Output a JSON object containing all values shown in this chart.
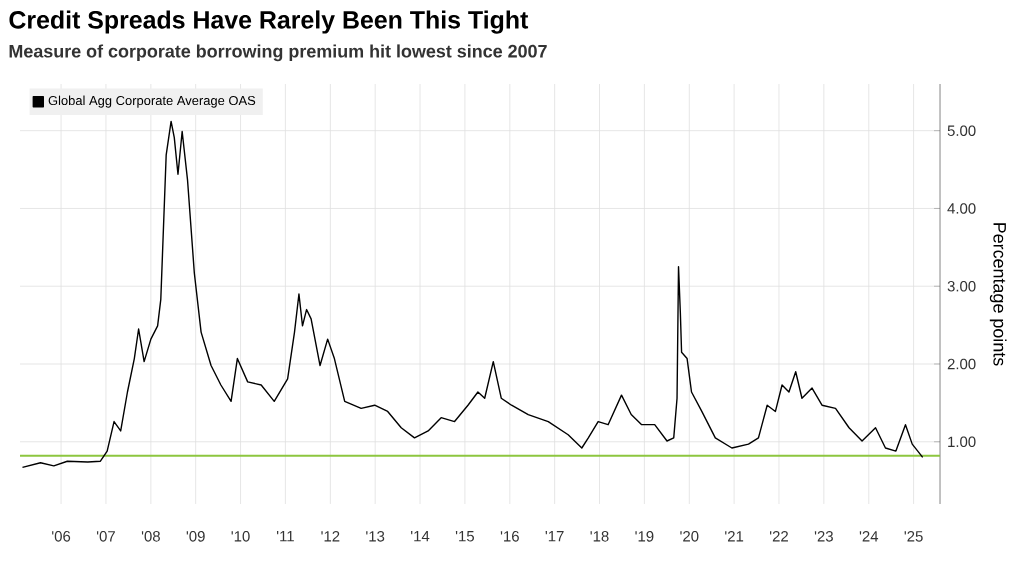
{
  "chart_data": {
    "type": "line",
    "title": "Credit Spreads Have Rarely Been This Tight",
    "subtitle": "Measure of corporate borrowing premium hit lowest since 2007",
    "ylabel": "Percentage points",
    "xlim": [
      "2005-08-01",
      "2026-02-01"
    ],
    "ylim": [
      0.2,
      5.6
    ],
    "xticks": [
      {
        "value": "2006-07-01",
        "label": "'06"
      },
      {
        "value": "2007-07-01",
        "label": "'07"
      },
      {
        "value": "2008-07-01",
        "label": "'08"
      },
      {
        "value": "2009-07-01",
        "label": "'09"
      },
      {
        "value": "2010-07-01",
        "label": "'10"
      },
      {
        "value": "2011-07-01",
        "label": "'11"
      },
      {
        "value": "2012-07-01",
        "label": "'12"
      },
      {
        "value": "2013-07-01",
        "label": "'13"
      },
      {
        "value": "2014-07-01",
        "label": "'14"
      },
      {
        "value": "2015-07-01",
        "label": "'15"
      },
      {
        "value": "2016-07-01",
        "label": "'16"
      },
      {
        "value": "2017-07-01",
        "label": "'17"
      },
      {
        "value": "2018-07-01",
        "label": "'18"
      },
      {
        "value": "2019-07-01",
        "label": "'19"
      },
      {
        "value": "2020-07-01",
        "label": "'20"
      },
      {
        "value": "2021-07-01",
        "label": "'21"
      },
      {
        "value": "2022-07-01",
        "label": "'22"
      },
      {
        "value": "2023-07-01",
        "label": "'23"
      },
      {
        "value": "2024-07-01",
        "label": "'24"
      },
      {
        "value": "2025-07-01",
        "label": "'25"
      }
    ],
    "yticks": [
      {
        "value": 1,
        "label": "1.00"
      },
      {
        "value": 2,
        "label": "2.00"
      },
      {
        "value": 3,
        "label": "3.00"
      },
      {
        "value": 4,
        "label": "4.00"
      },
      {
        "value": 5,
        "label": "5.00"
      }
    ],
    "grid": true,
    "legend": "top left",
    "marker": "none",
    "line_style": "solid",
    "ref_lines": [
      {
        "axis": "y",
        "value": 0.82,
        "color": "#8dc63f"
      }
    ],
    "series": [
      {
        "name": "Global Agg Corporate Average OAS",
        "color": "#000000",
        "x": [
          "2005-08-21",
          "2006-01-15",
          "2006-05-03",
          "2006-08-21",
          "2007-02-03",
          "2007-05-17",
          "2007-07-11",
          "2007-09-05",
          "2007-10-29",
          "2007-12-23",
          "2008-02-17",
          "2008-03-23",
          "2008-05-07",
          "2008-07-01",
          "2008-08-25",
          "2008-09-20",
          "2008-11-03",
          "2008-12-13",
          "2009-01-08",
          "2009-02-07",
          "2009-03-13",
          "2009-04-26",
          "2009-06-20",
          "2009-08-14",
          "2009-11-03",
          "2010-01-22",
          "2010-04-15",
          "2010-06-05",
          "2010-08-28",
          "2010-12-16",
          "2011-04-01",
          "2011-07-19",
          "2011-09-13",
          "2011-10-19",
          "2011-11-17",
          "2011-12-20",
          "2012-01-26",
          "2012-04-08",
          "2012-06-09",
          "2012-08-03",
          "2012-10-26",
          "2013-03-09",
          "2013-06-27",
          "2013-10-11",
          "2014-01-29",
          "2014-05-17",
          "2014-09-05",
          "2014-12-20",
          "2015-04-08",
          "2015-07-26",
          "2015-10-15",
          "2015-12-09",
          "2016-02-17",
          "2016-04-22",
          "2016-07-15",
          "2016-11-28",
          "2017-05-10",
          "2017-10-19",
          "2018-02-07",
          "2018-04-01",
          "2018-06-20",
          "2018-09-09",
          "2018-12-27",
          "2019-03-16",
          "2019-06-09",
          "2019-09-23",
          "2020-01-01",
          "2020-02-25",
          "2020-03-23",
          "2020-04-04",
          "2020-04-19",
          "2020-04-29",
          "2020-06-13",
          "2020-07-19",
          "2020-10-11",
          "2021-01-29",
          "2021-06-13",
          "2021-10-26",
          "2022-01-15",
          "2022-03-27",
          "2022-06-02",
          "2022-07-26",
          "2022-09-20",
          "2022-11-14",
          "2023-01-04",
          "2023-03-27",
          "2023-06-16",
          "2023-10-04",
          "2024-01-22",
          "2024-05-07",
          "2024-08-25",
          "2024-11-14",
          "2025-02-07",
          "2025-04-26",
          "2025-06-20",
          "2025-09-13"
        ],
        "values": [
          0.67,
          0.73,
          0.69,
          0.75,
          0.74,
          0.75,
          0.88,
          1.26,
          1.14,
          1.64,
          2.07,
          2.45,
          2.03,
          2.32,
          2.49,
          2.83,
          4.69,
          5.12,
          4.91,
          4.44,
          4.99,
          4.36,
          3.17,
          2.41,
          1.98,
          1.73,
          1.52,
          2.07,
          1.77,
          1.73,
          1.52,
          1.81,
          2.41,
          2.9,
          2.49,
          2.7,
          2.58,
          1.98,
          2.32,
          2.07,
          1.52,
          1.43,
          1.47,
          1.39,
          1.18,
          1.05,
          1.14,
          1.31,
          1.26,
          1.47,
          1.64,
          1.56,
          2.03,
          1.56,
          1.47,
          1.35,
          1.26,
          1.09,
          0.92,
          1.05,
          1.26,
          1.22,
          1.6,
          1.35,
          1.22,
          1.22,
          1.01,
          1.05,
          1.56,
          3.25,
          2.66,
          2.15,
          2.07,
          1.64,
          1.39,
          1.05,
          0.92,
          0.97,
          1.05,
          1.47,
          1.39,
          1.73,
          1.64,
          1.9,
          1.56,
          1.69,
          1.47,
          1.43,
          1.18,
          1.01,
          1.18,
          0.92,
          0.88,
          1.22,
          0.97,
          0.8
        ]
      }
    ]
  }
}
